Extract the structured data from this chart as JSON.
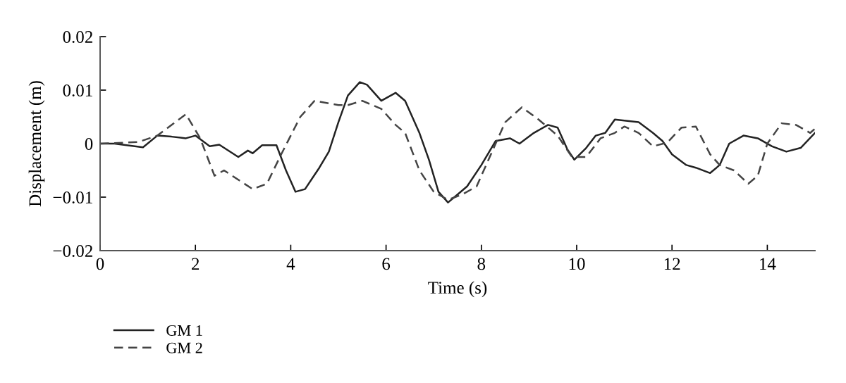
{
  "chart_data": {
    "type": "line",
    "xlabel": "Time (s)",
    "ylabel": "Displacement (m)",
    "xlim": [
      0,
      15
    ],
    "ylim": [
      -0.02,
      0.02
    ],
    "xticks": [
      0,
      2,
      4,
      6,
      8,
      10,
      12,
      14
    ],
    "yticks": [
      -0.02,
      -0.01,
      0,
      0.01,
      0.02
    ],
    "legend": "bottom left",
    "grid": false,
    "series": [
      {
        "name": "GM 1",
        "color": "#222222",
        "line_style": "solid",
        "x": [
          0,
          0.3,
          0.9,
          1.2,
          1.5,
          1.8,
          2.0,
          2.3,
          2.5,
          2.9,
          3.1,
          3.2,
          3.4,
          3.7,
          3.9,
          4.1,
          4.3,
          4.6,
          4.8,
          5.0,
          5.2,
          5.45,
          5.6,
          5.9,
          6.2,
          6.4,
          6.7,
          6.9,
          7.1,
          7.3,
          7.5,
          7.7,
          8.0,
          8.3,
          8.6,
          8.8,
          9.1,
          9.4,
          9.6,
          9.8,
          9.95,
          10.2,
          10.4,
          10.6,
          10.8,
          11.0,
          11.3,
          11.6,
          11.8,
          12.0,
          12.3,
          12.5,
          12.8,
          13.0,
          13.2,
          13.5,
          13.8,
          14.1,
          14.4,
          14.7,
          15.0
        ],
        "values": [
          0,
          0,
          -0.0007,
          0.0015,
          0.0013,
          0.001,
          0.0015,
          -0.0005,
          -0.0002,
          -0.0025,
          -0.0013,
          -0.0018,
          -0.0003,
          -0.0003,
          -0.005,
          -0.009,
          -0.0085,
          -0.0045,
          -0.0015,
          0.004,
          0.009,
          0.0115,
          0.011,
          0.008,
          0.0095,
          0.008,
          0.002,
          -0.003,
          -0.009,
          -0.011,
          -0.0095,
          -0.008,
          -0.004,
          0.0005,
          0.001,
          0,
          0.002,
          0.0035,
          0.003,
          -0.001,
          -0.003,
          -0.0008,
          0.0015,
          0.002,
          0.0045,
          0.0043,
          0.004,
          0.002,
          0.0005,
          -0.002,
          -0.004,
          -0.0045,
          -0.0055,
          -0.004,
          0,
          0.0015,
          0.001,
          -0.0005,
          -0.0015,
          -0.0008,
          0.002
        ]
      },
      {
        "name": "GM 2",
        "color": "#444444",
        "line_style": "dashed",
        "x": [
          0,
          0.8,
          1.2,
          1.8,
          2.1,
          2.4,
          2.6,
          3.2,
          3.5,
          3.8,
          4.2,
          4.5,
          5.0,
          5.2,
          5.5,
          5.9,
          6.2,
          6.4,
          6.7,
          7.0,
          7.3,
          7.6,
          7.9,
          8.2,
          8.5,
          8.85,
          9.2,
          9.6,
          9.9,
          10.2,
          10.5,
          10.8,
          11.0,
          11.3,
          11.6,
          11.9,
          12.2,
          12.5,
          12.8,
          13.0,
          13.3,
          13.6,
          13.8,
          14.0,
          14.3,
          14.6,
          14.9,
          15.0
        ],
        "values": [
          0,
          0.0003,
          0.0015,
          0.0055,
          0.001,
          -0.006,
          -0.005,
          -0.0085,
          -0.0075,
          -0.002,
          0.005,
          0.008,
          0.0072,
          0.0072,
          0.008,
          0.0065,
          0.0035,
          0.002,
          -0.005,
          -0.009,
          -0.0105,
          -0.0095,
          -0.008,
          -0.002,
          0.004,
          0.0068,
          0.0045,
          0.0015,
          -0.0025,
          -0.0025,
          0.001,
          0.002,
          0.0032,
          0.002,
          -0.0005,
          0.0002,
          0.003,
          0.0032,
          -0.002,
          -0.004,
          -0.005,
          -0.0075,
          -0.006,
          0,
          0.0038,
          0.0035,
          0.002,
          0.0028
        ]
      }
    ]
  }
}
